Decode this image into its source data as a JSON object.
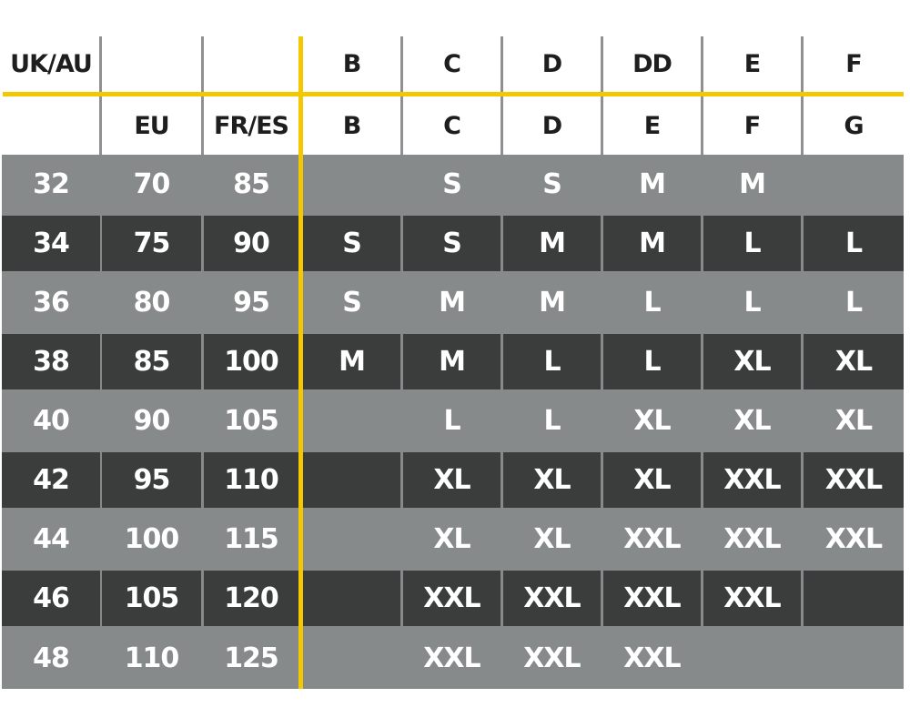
{
  "header_row_1": [
    "UK/AU",
    "",
    "",
    "B",
    "C",
    "D",
    "DD",
    "E",
    "F"
  ],
  "header_row_2": [
    "",
    "EU",
    "FR/ES",
    "B",
    "C",
    "D",
    "E",
    "F",
    "G"
  ],
  "rows": [
    {
      "shade": "light",
      "cells": [
        "32",
        "70",
        "85",
        "",
        "S",
        "S",
        "M",
        "M",
        ""
      ]
    },
    {
      "shade": "dark",
      "cells": [
        "34",
        "75",
        "90",
        "S",
        "S",
        "M",
        "M",
        "L",
        "L"
      ]
    },
    {
      "shade": "light",
      "cells": [
        "36",
        "80",
        "95",
        "S",
        "M",
        "M",
        "L",
        "L",
        "L"
      ]
    },
    {
      "shade": "dark",
      "cells": [
        "38",
        "85",
        "100",
        "M",
        "M",
        "L",
        "L",
        "XL",
        "XL"
      ]
    },
    {
      "shade": "light",
      "cells": [
        "40",
        "90",
        "105",
        "",
        "L",
        "L",
        "XL",
        "XL",
        "XL"
      ]
    },
    {
      "shade": "dark",
      "cells": [
        "42",
        "95",
        "110",
        "",
        "XL",
        "XL",
        "XL",
        "XXL",
        "XXL"
      ]
    },
    {
      "shade": "light",
      "cells": [
        "44",
        "100",
        "115",
        "",
        "XL",
        "XL",
        "XXL",
        "XXL",
        "XXL"
      ]
    },
    {
      "shade": "dark",
      "cells": [
        "46",
        "105",
        "120",
        "",
        "XXL",
        "XXL",
        "XXL",
        "XXL",
        ""
      ]
    },
    {
      "shade": "light",
      "cells": [
        "48",
        "110",
        "125",
        "",
        "XXL",
        "XXL",
        "XXL",
        "",
        ""
      ]
    }
  ],
  "colors": {
    "accent": "#f4c800",
    "light_row": "#878a8a",
    "dark_row": "#3b3c3c",
    "header_text": "#1e1e1e"
  }
}
